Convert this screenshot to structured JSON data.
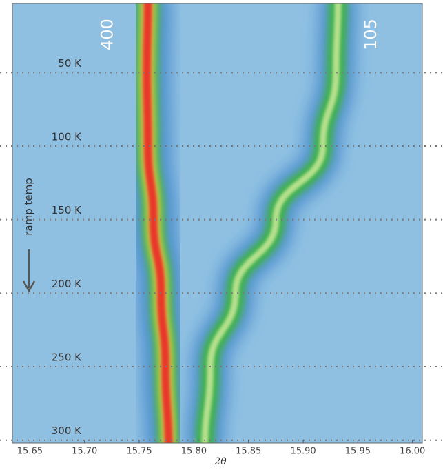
{
  "chart_data": {
    "type": "heatmap-lines",
    "xlabel": "2θ",
    "annotation": "ramp temp",
    "background": "#8fc0e2",
    "y": [
      10,
      50,
      100,
      150,
      200,
      250,
      300
    ],
    "series": [
      {
        "name": "400",
        "color": "#e8392a",
        "values": [
          15.758,
          15.757,
          15.758,
          15.763,
          15.77,
          15.774,
          15.777
        ]
      },
      {
        "name": "105",
        "color": "#b6e08e",
        "values": [
          15.932,
          15.93,
          15.918,
          15.875,
          15.838,
          15.815,
          15.81
        ]
      }
    ],
    "xlim": [
      15.634,
      16.009
    ],
    "xticks": [
      {
        "value": 15.65,
        "label": "15.65"
      },
      {
        "value": 15.7,
        "label": "15.70"
      },
      15.75,
      {
        "value": 15.8,
        "label": "15.80"
      },
      15.85,
      {
        "value": 15.9,
        "label": "15.90"
      },
      15.95,
      {
        "value": 16.0,
        "label": "16.00"
      }
    ],
    "ylim": [
      3,
      302
    ],
    "yticks": [
      {
        "value": 50,
        "label": "50 K"
      },
      {
        "value": 100,
        "label": "100 K"
      },
      {
        "value": 150,
        "label": "150 K"
      },
      {
        "value": 200,
        "label": "200 K"
      },
      {
        "value": 250,
        "label": "250 K"
      },
      {
        "value": 300,
        "label": "300 K"
      }
    ],
    "grid": true
  }
}
